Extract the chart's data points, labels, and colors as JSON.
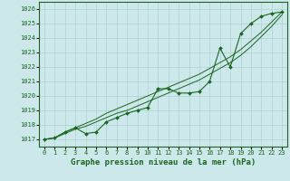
{
  "x": [
    0,
    1,
    2,
    3,
    4,
    5,
    6,
    7,
    8,
    9,
    10,
    11,
    12,
    13,
    14,
    15,
    16,
    17,
    18,
    19,
    20,
    21,
    22,
    23
  ],
  "y_main": [
    1017.0,
    1017.1,
    1017.5,
    1017.8,
    1017.4,
    1017.5,
    1018.2,
    1018.5,
    1018.8,
    1019.0,
    1019.2,
    1020.5,
    1020.5,
    1020.2,
    1020.2,
    1020.3,
    1021.0,
    1023.3,
    1022.0,
    1024.3,
    1025.0,
    1025.5,
    1025.7,
    1025.8
  ],
  "y_line1": [
    1017.0,
    1017.1,
    1017.4,
    1017.7,
    1017.9,
    1018.2,
    1018.5,
    1018.8,
    1019.0,
    1019.3,
    1019.6,
    1019.9,
    1020.2,
    1020.5,
    1020.8,
    1021.1,
    1021.5,
    1021.9,
    1022.3,
    1022.8,
    1023.4,
    1024.1,
    1024.8,
    1025.6
  ],
  "y_line2": [
    1017.0,
    1017.1,
    1017.5,
    1017.8,
    1018.1,
    1018.4,
    1018.8,
    1019.1,
    1019.4,
    1019.7,
    1020.0,
    1020.3,
    1020.6,
    1020.9,
    1021.2,
    1021.5,
    1021.9,
    1022.3,
    1022.7,
    1023.2,
    1023.8,
    1024.4,
    1025.1,
    1025.8
  ],
  "ylim": [
    1016.5,
    1026.5
  ],
  "yticks": [
    1017,
    1018,
    1019,
    1020,
    1021,
    1022,
    1023,
    1024,
    1025,
    1026
  ],
  "xlabel": "Graphe pression niveau de la mer (hPa)",
  "bg_color": "#cce8ea",
  "grid_color": "#b0d0d2",
  "line_color": "#1a6620",
  "marker_color": "#1a6620",
  "tick_label_color": "#1a6620",
  "xlabel_color": "#1a6620",
  "xlim": [
    -0.5,
    23.5
  ],
  "tick_fontsize": 5.0,
  "ylabel_fontsize": 6.5
}
